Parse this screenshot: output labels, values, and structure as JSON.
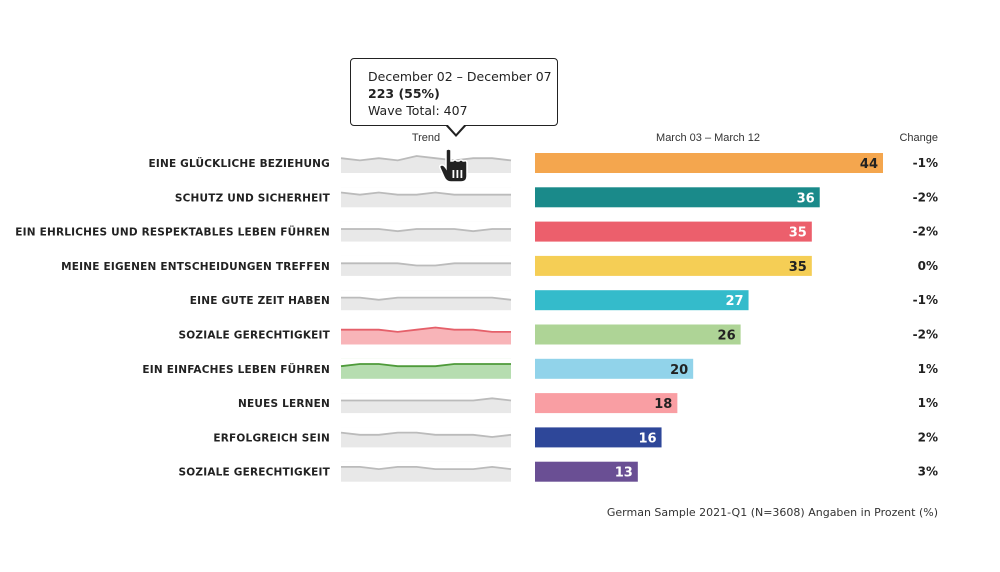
{
  "header": {
    "trend_label": "Trend",
    "period_label": "March 03 – March 12",
    "change_label": "Change"
  },
  "tooltip": {
    "date_range": "December 02 – December 07",
    "value": "223 (55%)",
    "wave_total": "Wave Total: 407"
  },
  "footer": "German Sample 2021-Q1 (N=3608) Angaben in Prozent (%)",
  "cursor_icon": "hand-pointer-icon",
  "chart_data": {
    "type": "bar",
    "orientation": "horizontal",
    "xlim": [
      0,
      50
    ],
    "categories": [
      "EINE GLÜCKLICHE BEZIEHUNG",
      "SCHUTZ UND SICHERHEIT",
      "EIN EHRLICHES UND RESPEKTABLES LEBEN FÜHREN",
      "MEINE EIGENEN ENTSCHEIDUNGEN TREFFEN",
      "EINE GUTE ZEIT HABEN",
      "SOZIALE GERECHTIGKEIT",
      "EIN EINFACHES LEBEN FÜHREN",
      "NEUES LERNEN",
      "ERFOLGREICH SEIN",
      "SOZIALE GERECHTIGKEIT"
    ],
    "values": [
      44,
      36,
      35,
      35,
      27,
      26,
      20,
      18,
      16,
      13
    ],
    "changes": [
      "-1%",
      "-2%",
      "-2%",
      "0%",
      "-1%",
      "-2%",
      "1%",
      "1%",
      "2%",
      "3%"
    ],
    "colors": [
      "#F4A64E",
      "#1A8A8A",
      "#EC5F6C",
      "#F5CE55",
      "#34BBCB",
      "#AED496",
      "#91D3EA",
      "#F99EA3",
      "#2E4799",
      "#6A4F94"
    ],
    "value_label_colors": [
      "#222222",
      "#ffffff",
      "#ffffff",
      "#222222",
      "#ffffff",
      "#222222",
      "#222222",
      "#222222",
      "#ffffff",
      "#ffffff"
    ],
    "trend_styles": [
      {
        "line": "#bbbbbb",
        "fill": "#e8e8e8"
      },
      {
        "line": "#bbbbbb",
        "fill": "#e8e8e8"
      },
      {
        "line": "#bbbbbb",
        "fill": "#e8e8e8"
      },
      {
        "line": "#bbbbbb",
        "fill": "#e8e8e8"
      },
      {
        "line": "#bbbbbb",
        "fill": "#e8e8e8"
      },
      {
        "line": "#E5606A",
        "fill": "#F8B4B8"
      },
      {
        "line": "#4E9A3A",
        "fill": "#B6DDB0"
      },
      {
        "line": "#bbbbbb",
        "fill": "#e8e8e8"
      },
      {
        "line": "#bbbbbb",
        "fill": "#e8e8e8"
      },
      {
        "line": "#bbbbbb",
        "fill": "#e8e8e8"
      }
    ],
    "trends": [
      [
        45,
        44,
        45,
        44,
        46,
        45,
        44,
        45,
        45,
        44
      ],
      [
        37,
        36,
        37,
        36,
        36,
        37,
        36,
        36,
        36,
        36
      ],
      [
        35,
        35,
        35,
        34,
        35,
        35,
        35,
        34,
        35,
        35
      ],
      [
        35,
        35,
        35,
        35,
        34,
        34,
        35,
        35,
        35,
        35
      ],
      [
        27,
        27,
        26,
        27,
        27,
        27,
        27,
        27,
        27,
        26
      ],
      [
        27,
        27,
        27,
        26,
        27,
        28,
        27,
        27,
        26,
        26
      ],
      [
        20,
        21,
        21,
        20,
        20,
        20,
        21,
        21,
        21,
        21
      ],
      [
        18,
        18,
        18,
        18,
        18,
        18,
        18,
        18,
        19,
        18
      ],
      [
        17,
        16,
        16,
        17,
        17,
        16,
        16,
        16,
        15,
        16
      ],
      [
        14,
        14,
        13,
        14,
        14,
        13,
        13,
        13,
        14,
        13
      ]
    ]
  }
}
